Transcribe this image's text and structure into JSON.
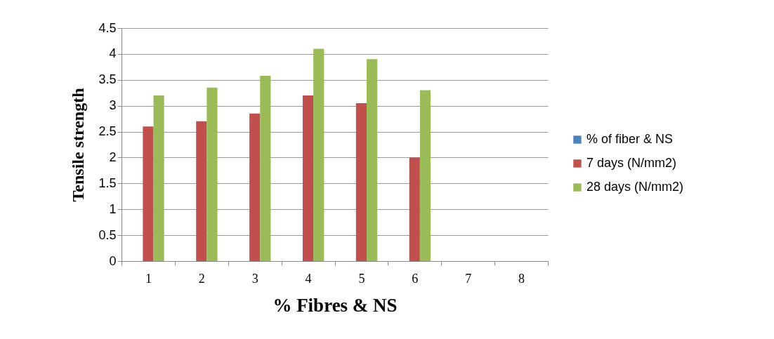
{
  "chart_data": {
    "type": "bar",
    "xlabel": "% Fibres & NS",
    "ylabel": "Tensile strength",
    "categories": [
      "1",
      "2",
      "3",
      "4",
      "5",
      "6",
      "7",
      "8"
    ],
    "series": [
      {
        "name": "% of fiber & NS",
        "color": "#4f81bd",
        "values": [
          null,
          null,
          null,
          null,
          null,
          null,
          null,
          null
        ]
      },
      {
        "name": "7 days (N/mm2)",
        "color": "#c0504d",
        "values": [
          2.6,
          2.7,
          2.85,
          3.2,
          3.05,
          2.0,
          null,
          null
        ]
      },
      {
        "name": "28 days (N/mm2)",
        "color": "#9bbb59",
        "values": [
          3.2,
          3.35,
          3.58,
          4.1,
          3.9,
          3.3,
          null,
          null
        ]
      }
    ],
    "ylim": [
      0,
      4.5
    ],
    "yticks": [
      0,
      0.5,
      1,
      1.5,
      2,
      2.5,
      3,
      3.5,
      4,
      4.5
    ],
    "grid": "y",
    "legend": "right"
  }
}
